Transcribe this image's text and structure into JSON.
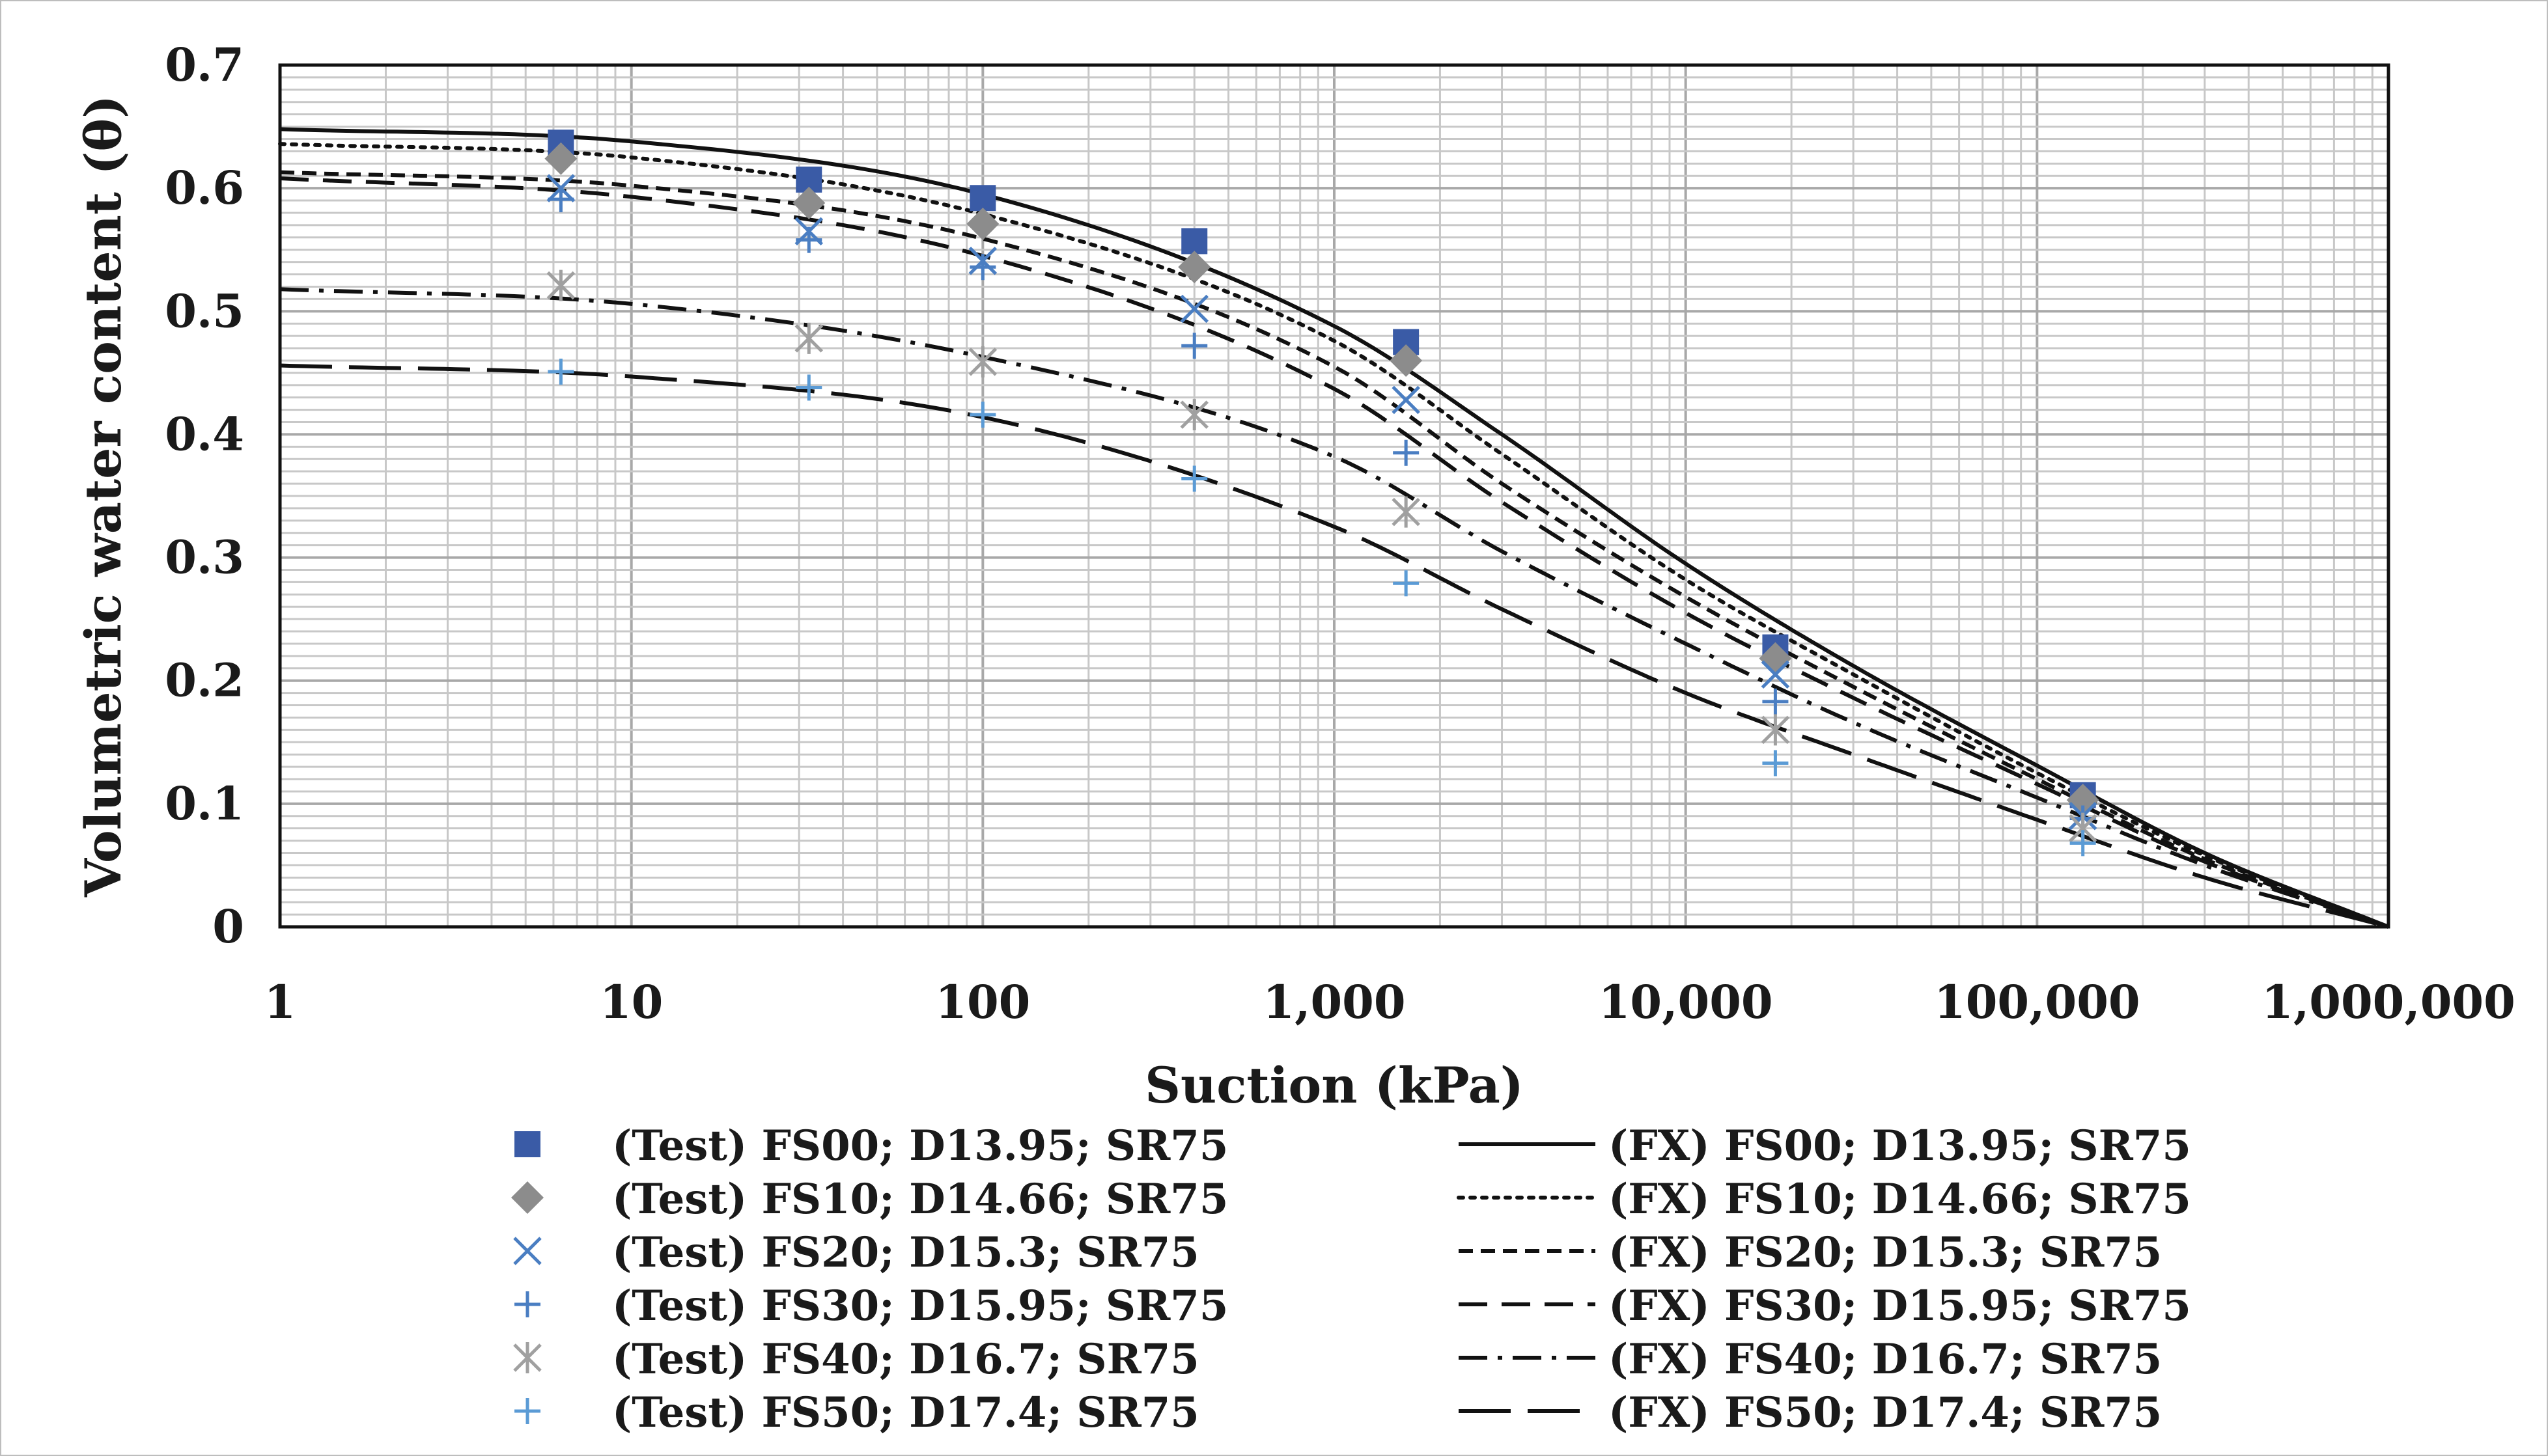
{
  "chart_data": {
    "type": "scatter",
    "title": "",
    "xlabel": "Suction (kPa)",
    "ylabel": "Volumetric water content (θ)",
    "x_scale": "log",
    "xlim": [
      1,
      1000000
    ],
    "ylim": [
      0,
      0.7
    ],
    "grid": true,
    "legend_position": "bottom",
    "x_ticks": [
      1,
      10,
      100,
      1000,
      10000,
      100000,
      1000000
    ],
    "x_tick_labels": [
      "1",
      "10",
      "100",
      "1,000",
      "10,000",
      "100,000",
      "1,000,000"
    ],
    "y_ticks": [
      0,
      0.1,
      0.2,
      0.3,
      0.4,
      0.5,
      0.6,
      0.7
    ],
    "y_tick_labels": [
      "0",
      "0.1",
      "0.2",
      "0.3",
      "0.4",
      "0.5",
      "0.6",
      "0.7"
    ],
    "test_series": [
      {
        "name": "(Test) FS00; D13.95; SR75",
        "marker": "square",
        "color": "#3a5ba6",
        "x": [
          6.3,
          32,
          100,
          400,
          1600,
          18000,
          135000
        ],
        "y": [
          0.637,
          0.607,
          0.592,
          0.557,
          0.475,
          0.227,
          0.107
        ]
      },
      {
        "name": "(Test) FS10; D14.66; SR75",
        "marker": "diamond",
        "color": "#8c8c8c",
        "x": [
          6.3,
          32,
          100,
          400,
          1600,
          18000,
          135000
        ],
        "y": [
          0.624,
          0.588,
          0.571,
          0.536,
          0.46,
          0.218,
          0.103
        ]
      },
      {
        "name": "(Test) FS20; D15.3; SR75",
        "marker": "x",
        "color": "#4a7ec2",
        "x": [
          6.3,
          32,
          100,
          400,
          1600,
          18000,
          135000
        ],
        "y": [
          0.6,
          0.565,
          0.541,
          0.502,
          0.428,
          0.205,
          0.09
        ]
      },
      {
        "name": "(Test) FS30; D15.95; SR75",
        "marker": "plus",
        "color": "#4a7ec2",
        "x": [
          6.3,
          32,
          100,
          400,
          1600,
          18000,
          135000
        ],
        "y": [
          0.591,
          0.558,
          0.536,
          0.472,
          0.385,
          0.183,
          0.088
        ]
      },
      {
        "name": "(Test) FS40; D16.7; SR75",
        "marker": "asterisk",
        "color": "#a0a0a0",
        "x": [
          6.3,
          32,
          100,
          400,
          1600,
          18000,
          135000
        ],
        "y": [
          0.521,
          0.478,
          0.459,
          0.416,
          0.337,
          0.16,
          0.08
        ]
      },
      {
        "name": "(Test) FS50; D17.4; SR75",
        "marker": "plus",
        "color": "#5b9bd5",
        "x": [
          6.3,
          32,
          100,
          400,
          1600,
          18000,
          135000
        ],
        "y": [
          0.451,
          0.438,
          0.416,
          0.364,
          0.279,
          0.133,
          0.068
        ]
      }
    ],
    "fit_series": [
      {
        "name": "(FX) FS00; D13.95; SR75",
        "dash": "solid",
        "x": [
          1,
          10,
          100,
          1000,
          3000,
          10000,
          30000,
          100000,
          300000,
          1000000
        ],
        "y": [
          0.648,
          0.638,
          0.595,
          0.488,
          0.4,
          0.295,
          0.212,
          0.131,
          0.06,
          0
        ]
      },
      {
        "name": "(FX) FS10; D14.66; SR75",
        "dash": "dotted",
        "x": [
          1,
          10,
          100,
          1000,
          3000,
          10000,
          30000,
          100000,
          300000,
          1000000
        ],
        "y": [
          0.636,
          0.625,
          0.579,
          0.476,
          0.384,
          0.282,
          0.205,
          0.125,
          0.058,
          0
        ]
      },
      {
        "name": "(FX) FS20; D15.3; SR75",
        "dash": "short-dash",
        "x": [
          1,
          10,
          100,
          1000,
          3000,
          10000,
          30000,
          100000,
          300000,
          1000000
        ],
        "y": [
          0.613,
          0.602,
          0.559,
          0.455,
          0.36,
          0.268,
          0.195,
          0.12,
          0.055,
          0
        ]
      },
      {
        "name": "(FX) FS30; D15.95; SR75",
        "dash": "dash",
        "x": [
          1,
          10,
          100,
          1000,
          3000,
          10000,
          30000,
          100000,
          300000,
          1000000
        ],
        "y": [
          0.608,
          0.593,
          0.545,
          0.437,
          0.345,
          0.255,
          0.186,
          0.116,
          0.053,
          0
        ]
      },
      {
        "name": "(FX) FS40; D16.7; SR75",
        "dash": "dash-dot",
        "x": [
          1,
          10,
          100,
          1000,
          3000,
          10000,
          30000,
          100000,
          300000,
          1000000
        ],
        "y": [
          0.518,
          0.506,
          0.463,
          0.382,
          0.305,
          0.23,
          0.166,
          0.105,
          0.05,
          0
        ]
      },
      {
        "name": "(FX) FS50; D17.4; SR75",
        "dash": "long-dash",
        "x": [
          1,
          10,
          100,
          1000,
          3000,
          10000,
          30000,
          100000,
          300000,
          1000000
        ],
        "y": [
          0.456,
          0.447,
          0.414,
          0.325,
          0.258,
          0.19,
          0.14,
          0.087,
          0.04,
          0
        ]
      }
    ]
  }
}
